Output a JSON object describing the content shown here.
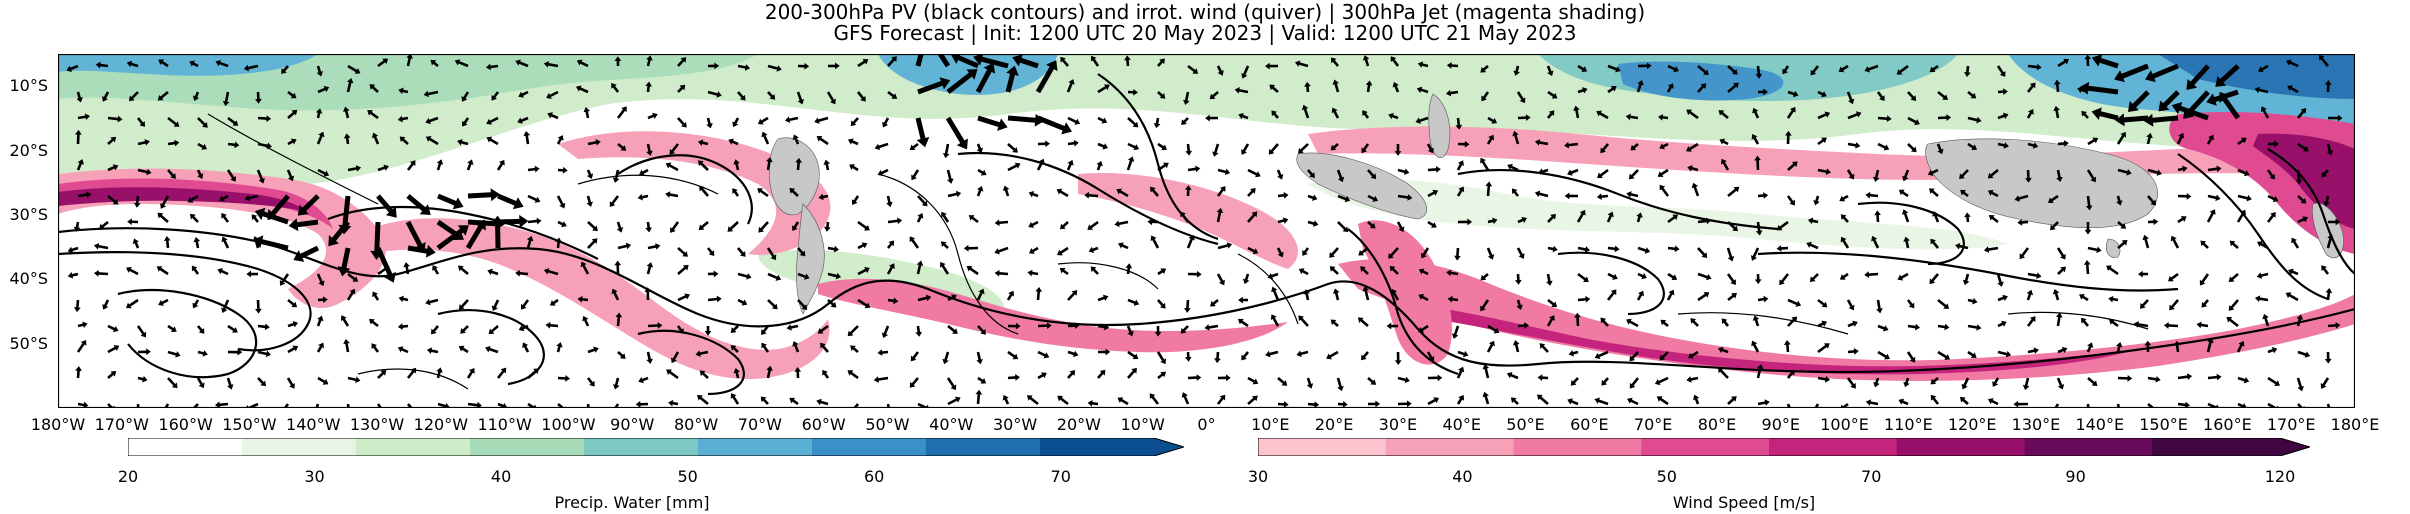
{
  "title_line1": "200-300hPa PV (black contours) and irrot. wind (quiver) | 300hPa Jet (magenta shading)",
  "title_line2": "GFS Forecast | Init: 1200 UTC 20 May 2023 | Valid: 1200 UTC 21 May 2023",
  "map": {
    "lon_range": [
      -180,
      180
    ],
    "lat_range": [
      -60,
      -5
    ],
    "lat_ticks": [
      "10°S",
      "20°S",
      "30°S",
      "40°S",
      "50°S"
    ],
    "lat_tick_values": [
      -10,
      -20,
      -30,
      -40,
      -50
    ],
    "lon_ticks": [
      "180°W",
      "170°W",
      "160°W",
      "150°W",
      "140°W",
      "130°W",
      "120°W",
      "110°W",
      "100°W",
      "90°W",
      "80°W",
      "70°W",
      "60°W",
      "50°W",
      "40°W",
      "30°W",
      "20°W",
      "10°W",
      "0°",
      "10°E",
      "20°E",
      "30°E",
      "40°E",
      "50°E",
      "60°E",
      "70°E",
      "80°E",
      "90°E",
      "100°E",
      "110°E",
      "120°E",
      "130°E",
      "140°E",
      "150°E",
      "160°E",
      "170°E",
      "180°E"
    ],
    "lon_tick_values": [
      -180,
      -170,
      -160,
      -150,
      -140,
      -130,
      -120,
      -110,
      -100,
      -90,
      -80,
      -70,
      -60,
      -50,
      -40,
      -30,
      -20,
      -10,
      0,
      10,
      20,
      30,
      40,
      50,
      60,
      70,
      80,
      90,
      100,
      110,
      120,
      130,
      140,
      150,
      160,
      170,
      180
    ],
    "colors": {
      "land": "#c8c8c8",
      "pv_contour": "#000000",
      "quiver": "#000000"
    }
  },
  "colorbar_pw": {
    "label": "Precip. Water [mm]",
    "ticks": [
      "20",
      "30",
      "40",
      "50",
      "60",
      "70"
    ],
    "tick_values": [
      20,
      30,
      40,
      50,
      60,
      70
    ],
    "range": [
      20,
      75
    ],
    "colors": [
      "#ffffff",
      "#e8f5e4",
      "#cfecc8",
      "#a8dcb8",
      "#7cc8c4",
      "#5ab0d4",
      "#3a90c8",
      "#1f6fb0",
      "#0c4f90"
    ]
  },
  "colorbar_wind": {
    "label": "Wind Speed [m/s]",
    "ticks": [
      "30",
      "40",
      "50",
      "70",
      "90",
      "120"
    ],
    "tick_values": [
      30,
      40,
      50,
      70,
      90,
      120
    ],
    "colors": [
      "#fbc4cf",
      "#f7a1b8",
      "#f07aa4",
      "#e04a90",
      "#c4247c",
      "#98106a",
      "#6a0a5a",
      "#3f0640"
    ]
  }
}
